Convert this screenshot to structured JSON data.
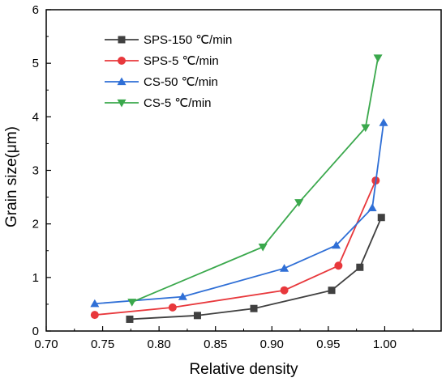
{
  "chart_data": {
    "type": "line",
    "title": "",
    "xlabel": "Relative density",
    "ylabel": "Grain size(μm)",
    "xlim": [
      0.7,
      1.05
    ],
    "ylim": [
      0,
      6
    ],
    "xticks": [
      "0.70",
      "0.75",
      "0.80",
      "0.85",
      "0.90",
      "0.95",
      "1.00"
    ],
    "yticks": [
      "0",
      "1",
      "2",
      "3",
      "4",
      "5",
      "6"
    ],
    "grid": false,
    "legend_position": "top-left",
    "series": [
      {
        "name": "SPS-150 ℃/min",
        "color": "#404040",
        "marker": "square",
        "points": [
          [
            0.774,
            0.22
          ],
          [
            0.834,
            0.29
          ],
          [
            0.884,
            0.42
          ],
          [
            0.953,
            0.76
          ],
          [
            0.978,
            1.19
          ],
          [
            0.997,
            2.12
          ]
        ]
      },
      {
        "name": "SPS-5 ℃/min",
        "color": "#e8383c",
        "marker": "circle",
        "points": [
          [
            0.743,
            0.3
          ],
          [
            0.812,
            0.44
          ],
          [
            0.911,
            0.76
          ],
          [
            0.959,
            1.22
          ],
          [
            0.992,
            2.81
          ]
        ]
      },
      {
        "name": "CS-50 ℃/min",
        "color": "#2f6fd6",
        "marker": "triangle-up",
        "points": [
          [
            0.743,
            0.51
          ],
          [
            0.821,
            0.64
          ],
          [
            0.911,
            1.17
          ],
          [
            0.957,
            1.6
          ],
          [
            0.989,
            2.3
          ],
          [
            0.999,
            3.89
          ]
        ]
      },
      {
        "name": "CS-5 ℃/min",
        "color": "#3aa84c",
        "marker": "triangle-down",
        "points": [
          [
            0.776,
            0.54
          ],
          [
            0.892,
            1.57
          ],
          [
            0.924,
            2.4
          ],
          [
            0.983,
            3.8
          ],
          [
            0.994,
            5.1
          ]
        ]
      }
    ]
  }
}
